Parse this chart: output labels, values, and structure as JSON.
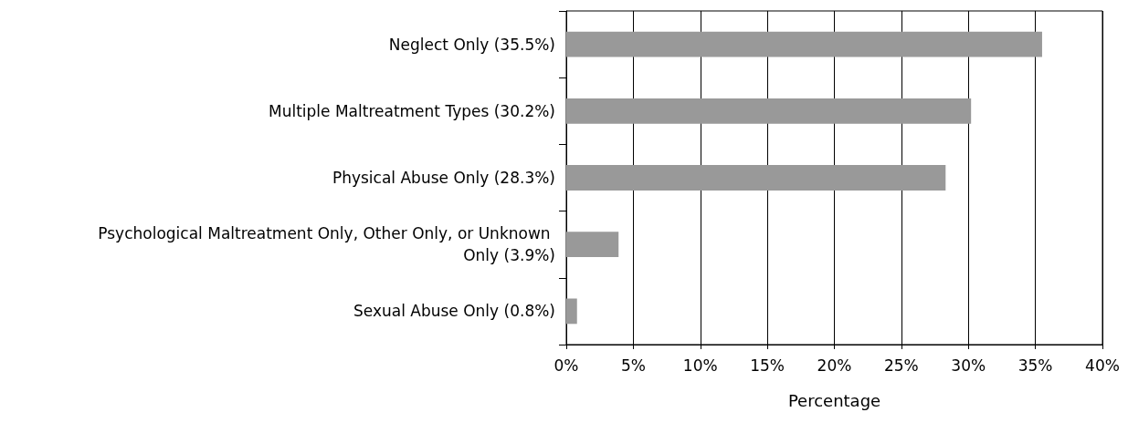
{
  "chart_data": {
    "type": "bar",
    "orientation": "horizontal",
    "xlabel": "Percentage",
    "categories": [
      "Neglect Only (35.5%)",
      "Multiple Maltreatment Types (30.2%)",
      "Physical Abuse Only (28.3%)",
      "Psychological Maltreatment Only, Other Only, or Unknown Only (3.9%)",
      "Sexual Abuse Only (0.8%)"
    ],
    "values": [
      35.5,
      30.2,
      28.3,
      3.9,
      0.8
    ],
    "color": "#999999",
    "xlim": [
      0,
      40
    ],
    "xticks": [
      {
        "value": 0,
        "label": "0%"
      },
      {
        "value": 5,
        "label": "5%"
      },
      {
        "value": 10,
        "label": "10%"
      },
      {
        "value": 15,
        "label": "15%"
      },
      {
        "value": 20,
        "label": "20%"
      },
      {
        "value": 25,
        "label": "25%"
      },
      {
        "value": 30,
        "label": "30%"
      },
      {
        "value": 35,
        "label": "35%"
      },
      {
        "value": 40,
        "label": "40%"
      }
    ],
    "grid": "x"
  }
}
